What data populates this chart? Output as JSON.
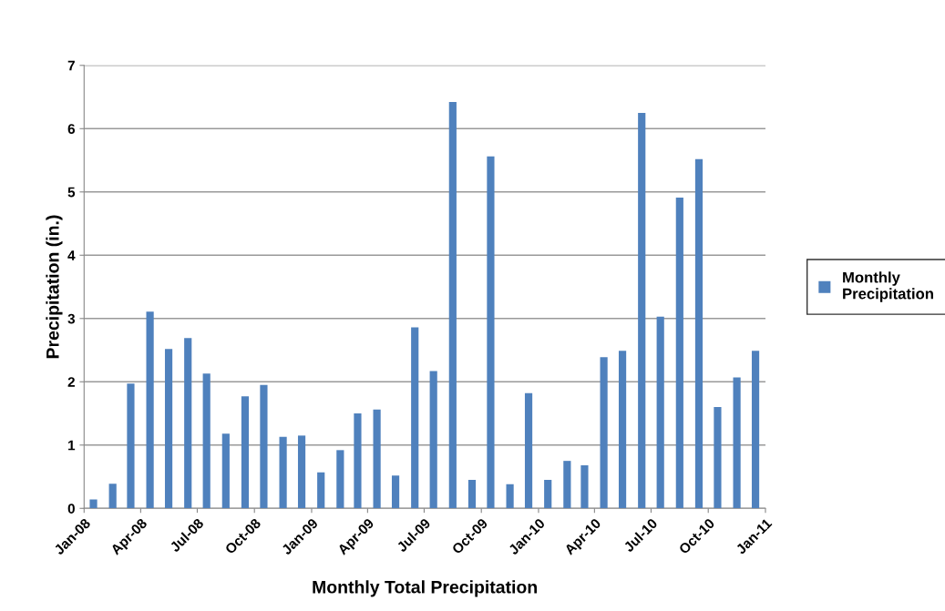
{
  "chart_data": {
    "type": "bar",
    "xlabel": "Monthly Total Precipitation",
    "ylabel": "Precipitation (in.)",
    "x": [
      "2008-01-16",
      "2008-02-16",
      "2008-03-16",
      "2008-04-16",
      "2008-05-16",
      "2008-06-16",
      "2008-07-16",
      "2008-08-16",
      "2008-09-16",
      "2008-10-16",
      "2008-11-16",
      "2008-12-16",
      "2009-01-16",
      "2009-02-16",
      "2009-03-16",
      "2009-04-16",
      "2009-05-16",
      "2009-06-16",
      "2009-07-16",
      "2009-08-16",
      "2009-09-16",
      "2009-10-16",
      "2009-11-16",
      "2009-12-16",
      "2010-01-16",
      "2010-02-16",
      "2010-03-16",
      "2010-04-16",
      "2010-05-16",
      "2010-06-16",
      "2010-07-16",
      "2010-08-16",
      "2010-09-16",
      "2010-10-16",
      "2010-11-16",
      "2010-12-16"
    ],
    "series": [
      {
        "name": "Monthly Precipitation",
        "color": "#4f81bd",
        "values": [
          0.14,
          0.39,
          1.97,
          3.11,
          2.52,
          2.69,
          2.13,
          1.18,
          1.77,
          1.95,
          1.13,
          1.15,
          0.57,
          0.92,
          1.5,
          1.56,
          0.52,
          2.86,
          2.17,
          6.42,
          0.45,
          5.56,
          0.38,
          1.82,
          0.45,
          0.75,
          0.68,
          2.39,
          2.49,
          6.25,
          3.03,
          4.91,
          5.52,
          1.6,
          2.07,
          2.49
        ]
      }
    ],
    "xlim": [
      "2008-01",
      "2011-01"
    ],
    "xticks": [
      {
        "value": "2008-01",
        "label": "Jan-08"
      },
      {
        "value": "2008-04",
        "label": "Apr-08"
      },
      {
        "value": "2008-07",
        "label": "Jul-08"
      },
      {
        "value": "2008-10",
        "label": "Oct-08"
      },
      {
        "value": "2009-01",
        "label": "Jan-09"
      },
      {
        "value": "2009-04",
        "label": "Apr-09"
      },
      {
        "value": "2009-07",
        "label": "Jul-09"
      },
      {
        "value": "2009-10",
        "label": "Oct-09"
      },
      {
        "value": "2010-01",
        "label": "Jan-10"
      },
      {
        "value": "2010-04",
        "label": "Apr-10"
      },
      {
        "value": "2010-07",
        "label": "Jul-10"
      },
      {
        "value": "2010-10",
        "label": "Oct-10"
      },
      {
        "value": "2011-01",
        "label": "Jan-11"
      }
    ],
    "ylim": [
      0,
      7
    ],
    "yticks": [
      0,
      1,
      2,
      3,
      4,
      5,
      6,
      7
    ],
    "grid": "y",
    "legend": "right"
  }
}
